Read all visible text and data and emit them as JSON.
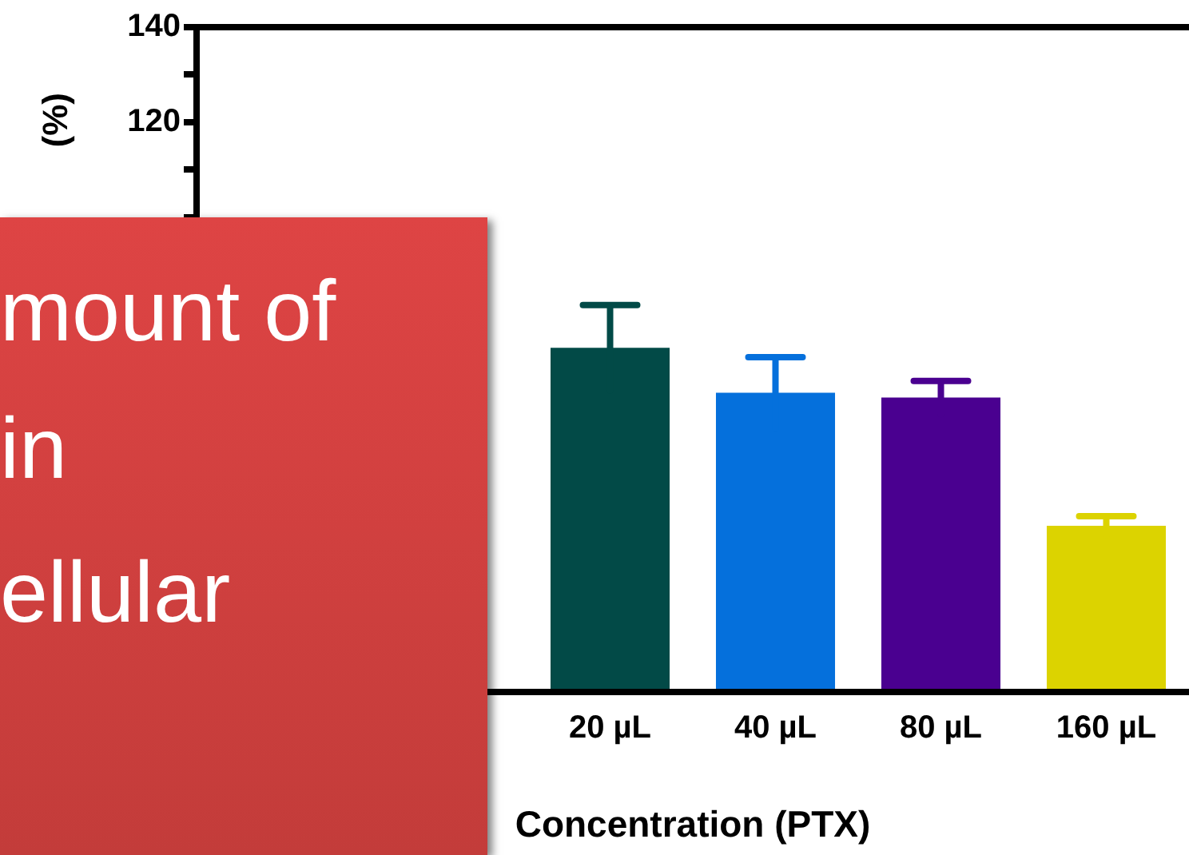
{
  "chart_data": {
    "type": "bar",
    "xlabel": "Concentration (PTX)",
    "ylabel": "(%)",
    "categories": [
      null,
      null,
      "20 µL",
      "40 µL",
      "80 µL",
      "160 µL"
    ],
    "values": [
      null,
      null,
      72.5,
      63,
      62,
      35
    ],
    "colors": [
      "#000000",
      "#990000",
      "#024a47",
      "#0570dc",
      "#4a0090",
      "#dcd300"
    ],
    "errors": [
      null,
      null,
      9,
      7.5,
      3.5,
      2
    ],
    "ylim": [
      0,
      140
    ],
    "yticks": [
      {
        "value": 0,
        "label": null
      },
      {
        "value": 10,
        "label": null
      },
      {
        "value": 20,
        "label": null
      },
      {
        "value": 30,
        "label": null
      },
      {
        "value": 40,
        "label": null
      },
      {
        "value": 50,
        "label": null
      },
      {
        "value": 60,
        "label": null
      },
      {
        "value": 70,
        "label": null
      },
      {
        "value": 80,
        "label": null
      },
      {
        "value": 90,
        "label": null
      },
      {
        "value": 100,
        "label": null
      },
      {
        "value": 110,
        "label": null
      },
      120,
      {
        "value": 130,
        "label": null
      },
      140
    ],
    "annotations": [
      "mount of",
      "in",
      "ellular"
    ]
  }
}
